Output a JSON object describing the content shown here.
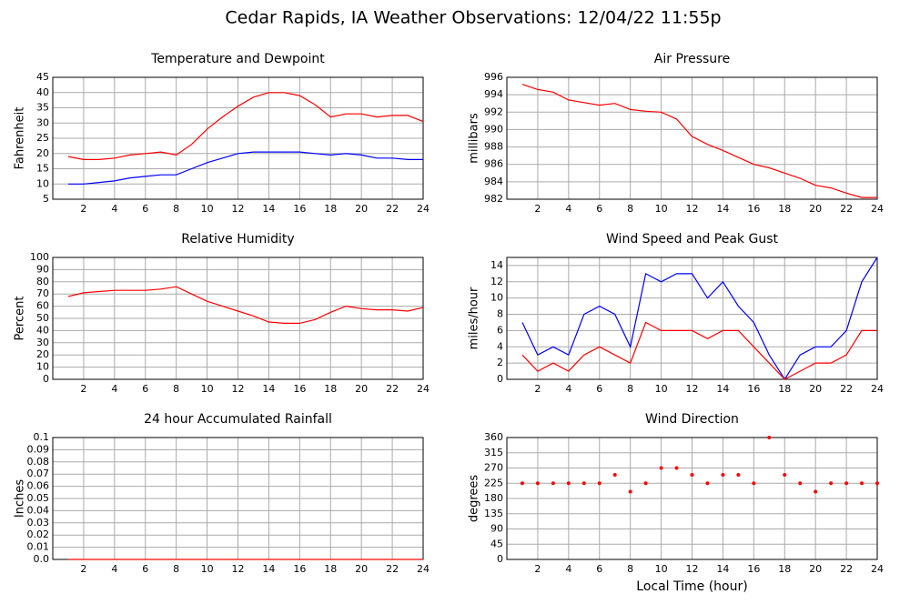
{
  "title": "Cedar Rapids, IA Weather Observations: 12/04/22 11:55p",
  "chart_data": [
    {
      "type": "line",
      "title": "Temperature and Dewpoint",
      "ylabel": "Fahrenheit",
      "x": [
        1,
        2,
        3,
        4,
        5,
        6,
        7,
        8,
        9,
        10,
        11,
        12,
        13,
        14,
        15,
        16,
        17,
        18,
        19,
        20,
        21,
        22,
        23,
        24
      ],
      "series": [
        {
          "color": "#ff0000",
          "values": [
            19,
            18,
            18,
            18.5,
            19.5,
            20,
            20.5,
            19.5,
            23,
            28,
            32,
            35.5,
            38.5,
            40,
            40,
            39,
            36,
            32,
            33,
            33,
            32,
            32.5,
            32.5,
            30.5
          ]
        },
        {
          "color": "#0000ff",
          "values": [
            10,
            10,
            10.5,
            11,
            12,
            12.5,
            13,
            13,
            15,
            17,
            18.5,
            20,
            20.5,
            20.5,
            20.5,
            20.5,
            20,
            19.5,
            20,
            19.5,
            18.5,
            18.5,
            18,
            18
          ]
        }
      ],
      "xlim": [
        0,
        24
      ],
      "xticks": [
        2,
        4,
        6,
        8,
        10,
        12,
        14,
        16,
        18,
        20,
        22,
        24
      ],
      "ylim": [
        5,
        45
      ],
      "yticks": [
        5,
        10,
        15,
        20,
        25,
        30,
        35,
        40,
        45
      ],
      "grid": true
    },
    {
      "type": "line",
      "title": "Air Pressure",
      "ylabel": "millibars",
      "x": [
        1,
        2,
        3,
        4,
        5,
        6,
        7,
        8,
        9,
        10,
        11,
        12,
        13,
        14,
        15,
        16,
        17,
        18,
        19,
        20,
        21,
        22,
        23,
        24
      ],
      "values": [
        995.2,
        994.6,
        994.3,
        993.4,
        993.1,
        992.8,
        993.0,
        992.3,
        992.1,
        992.0,
        991.2,
        989.2,
        988.3,
        987.6,
        986.8,
        986.0,
        985.6,
        985.0,
        984.4,
        983.6,
        983.3,
        982.7,
        982.2,
        982.2
      ],
      "color": "#ff0000",
      "xlim": [
        0,
        24
      ],
      "xticks": [
        2,
        4,
        6,
        8,
        10,
        12,
        14,
        16,
        18,
        20,
        22,
        24
      ],
      "ylim": [
        982,
        996
      ],
      "yticks": [
        982,
        984,
        986,
        988,
        990,
        992,
        994,
        996
      ],
      "grid": true
    },
    {
      "type": "line",
      "title": "Relative Humidity",
      "ylabel": "Percent",
      "x": [
        1,
        2,
        3,
        4,
        5,
        6,
        7,
        8,
        9,
        10,
        11,
        12,
        13,
        14,
        15,
        16,
        17,
        18,
        19,
        20,
        21,
        22,
        23,
        24
      ],
      "values": [
        68,
        71,
        72,
        73,
        73,
        73,
        74,
        76,
        70,
        64,
        60,
        56,
        52,
        47,
        46,
        46,
        49,
        55,
        60,
        58,
        57,
        57,
        56,
        59
      ],
      "color": "#ff0000",
      "xlim": [
        0,
        24
      ],
      "xticks": [
        2,
        4,
        6,
        8,
        10,
        12,
        14,
        16,
        18,
        20,
        22,
        24
      ],
      "ylim": [
        0,
        100
      ],
      "yticks": [
        0,
        10,
        20,
        30,
        40,
        50,
        60,
        70,
        80,
        90,
        100
      ],
      "grid": true
    },
    {
      "type": "line",
      "title": "Wind Speed and Peak Gust",
      "ylabel": "miles/hour",
      "x": [
        1,
        2,
        3,
        4,
        5,
        6,
        7,
        8,
        9,
        10,
        11,
        12,
        13,
        14,
        15,
        16,
        17,
        18,
        19,
        20,
        21,
        22,
        23,
        24
      ],
      "series": [
        {
          "color": "#0000ff",
          "values": [
            7,
            3,
            4,
            3,
            8,
            9,
            8,
            4,
            13,
            12,
            13,
            13,
            10,
            12,
            9,
            7,
            3,
            0,
            3,
            4,
            4,
            6,
            12,
            15
          ]
        },
        {
          "color": "#ff0000",
          "values": [
            3,
            1,
            2,
            1,
            3,
            4,
            3,
            2,
            7,
            6,
            6,
            6,
            5,
            6,
            6,
            4,
            2,
            0,
            1,
            2,
            2,
            3,
            6,
            6
          ]
        }
      ],
      "xlim": [
        0,
        24
      ],
      "xticks": [
        2,
        4,
        6,
        8,
        10,
        12,
        14,
        16,
        18,
        20,
        22,
        24
      ],
      "ylim": [
        0,
        15
      ],
      "yticks": [
        0,
        2,
        4,
        6,
        8,
        10,
        12,
        14
      ],
      "grid": true
    },
    {
      "type": "line",
      "title": "24 hour Accumulated Rainfall",
      "ylabel": "Inches",
      "x": [
        1,
        2,
        3,
        4,
        5,
        6,
        7,
        8,
        9,
        10,
        11,
        12,
        13,
        14,
        15,
        16,
        17,
        18,
        19,
        20,
        21,
        22,
        23,
        24
      ],
      "values": [
        0,
        0,
        0,
        0,
        0,
        0,
        0,
        0,
        0,
        0,
        0,
        0,
        0,
        0,
        0,
        0,
        0,
        0,
        0,
        0,
        0,
        0,
        0,
        0
      ],
      "color": "#ff0000",
      "xlim": [
        0,
        24
      ],
      "xticks": [
        2,
        4,
        6,
        8,
        10,
        12,
        14,
        16,
        18,
        20,
        22,
        24
      ],
      "ylim": [
        0,
        0.1
      ],
      "yticks": [
        {
          "value": 0,
          "label": "0.0"
        },
        0.01,
        0.02,
        0.03,
        0.04,
        0.05,
        0.06,
        0.07,
        0.08,
        0.09,
        0.1
      ],
      "grid": true
    },
    {
      "type": "scatter",
      "title": "Wind Direction",
      "ylabel": "degrees",
      "xlabel": "Local Time (hour)",
      "x": [
        1,
        2,
        3,
        4,
        5,
        6,
        7,
        8,
        9,
        10,
        11,
        12,
        13,
        14,
        15,
        16,
        17,
        18,
        19,
        20,
        21,
        22,
        23,
        24
      ],
      "values": [
        225,
        225,
        225,
        225,
        225,
        225,
        250,
        200,
        225,
        270,
        270,
        250,
        225,
        250,
        250,
        225,
        360,
        250,
        225,
        200,
        225,
        225,
        225,
        225
      ],
      "color": "#ff0000",
      "xlim": [
        0,
        24
      ],
      "xticks": [
        2,
        4,
        6,
        8,
        10,
        12,
        14,
        16,
        18,
        20,
        22,
        24
      ],
      "ylim": [
        0,
        360
      ],
      "yticks": [
        0,
        45,
        90,
        135,
        180,
        225,
        270,
        315,
        360
      ],
      "grid": true
    }
  ]
}
